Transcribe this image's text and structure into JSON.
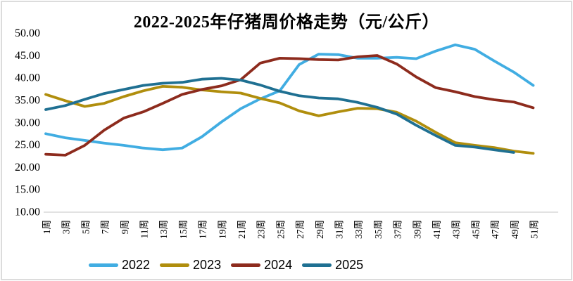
{
  "chart_data": {
    "type": "line",
    "title": "2022-2025年仔猪周价格走势（元/公斤）",
    "unit": "元/公斤",
    "categories": [
      "1周",
      "3周",
      "5周",
      "7周",
      "9周",
      "11周",
      "13周",
      "15周",
      "17周",
      "19周",
      "21周",
      "23周",
      "25周",
      "27周",
      "29周",
      "31周",
      "33周",
      "35周",
      "37周",
      "39周",
      "41周",
      "43周",
      "45周",
      "47周",
      "49周",
      "51周"
    ],
    "yticks": [
      "50.00",
      "45.00",
      "40.00",
      "35.00",
      "30.00",
      "25.00",
      "20.00",
      "15.00",
      "10.00"
    ],
    "ylim": [
      10,
      50
    ],
    "grid": false,
    "legend_position": "bottom",
    "axis_color": "#d9d9d9",
    "text_color": "#000000",
    "series": [
      {
        "name": "2022",
        "color": "#41ade2",
        "values": [
          27.4,
          26.5,
          25.9,
          25.3,
          24.8,
          24.2,
          23.8,
          24.2,
          26.7,
          30.0,
          33.0,
          35.2,
          37.0,
          42.9,
          45.2,
          45.1,
          44.3,
          44.3,
          44.5,
          44.2,
          45.9,
          47.3,
          46.3,
          43.7,
          41.2,
          38.2
        ]
      },
      {
        "name": "2023",
        "color": "#b08e0d",
        "values": [
          36.2,
          34.8,
          33.5,
          34.2,
          35.7,
          37.0,
          38.0,
          37.8,
          37.2,
          36.8,
          36.5,
          35.3,
          34.3,
          32.5,
          31.4,
          32.3,
          33.1,
          33.0,
          32.2,
          30.2,
          27.7,
          25.4,
          24.8,
          24.3,
          23.5,
          23.0
        ]
      },
      {
        "name": "2024",
        "color": "#8d2b1d",
        "values": [
          22.8,
          22.6,
          24.8,
          28.2,
          30.9,
          32.3,
          34.2,
          36.2,
          37.3,
          38.1,
          39.5,
          43.2,
          44.3,
          44.2,
          44.0,
          43.9,
          44.6,
          44.9,
          43.0,
          40.1,
          37.7,
          36.8,
          35.7,
          35.0,
          34.5,
          33.2
        ]
      },
      {
        "name": "2025",
        "color": "#1f7092",
        "values": [
          32.8,
          33.7,
          35.1,
          36.4,
          37.3,
          38.2,
          38.7,
          38.9,
          39.6,
          39.8,
          39.4,
          38.3,
          36.9,
          35.9,
          35.4,
          35.2,
          34.4,
          33.3,
          31.8,
          29.3,
          27.0,
          24.8,
          24.4,
          23.8,
          23.2,
          null
        ]
      }
    ]
  }
}
